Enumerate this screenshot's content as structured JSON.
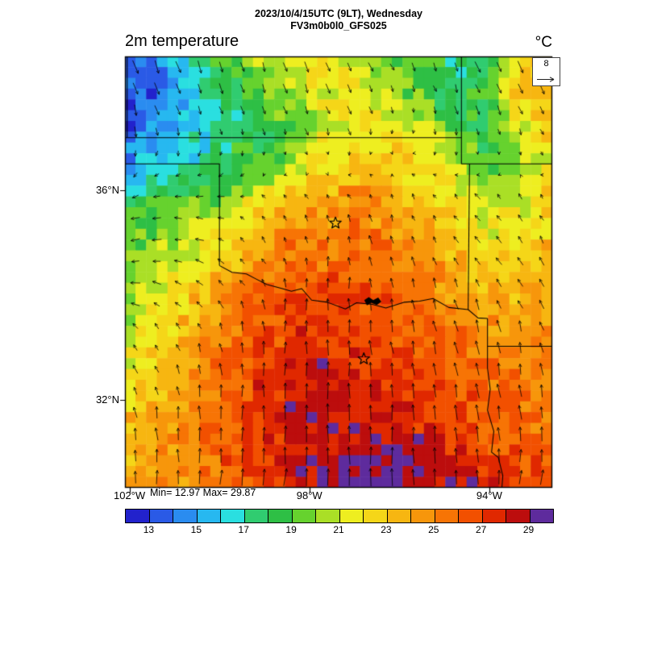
{
  "header": {
    "datetime_line": "2023/10/4/15UTC (9LT), Wednesday",
    "model_line": "FV3m0b0l0_GFS025",
    "left_title": "2m temperature",
    "units_label": "°C",
    "ref_vector_label": "8"
  },
  "stats": {
    "minmax_label": "Min= 12.97 Max= 29.87"
  },
  "axes": {
    "lat_ticks": [
      {
        "label": "36°N",
        "lat": 36
      },
      {
        "label": "32°N",
        "lat": 32
      }
    ],
    "lon_ticks": [
      {
        "label": "102°W",
        "lon": 102
      },
      {
        "label": "98°W",
        "lon": 98
      },
      {
        "label": "94°W",
        "lon": 94
      }
    ]
  },
  "colorbar": {
    "min": 12,
    "max": 30,
    "tick_labels": [
      "13",
      "15",
      "17",
      "19",
      "21",
      "23",
      "25",
      "27",
      "29"
    ],
    "colors": [
      "#2222cc",
      "#2a5ae6",
      "#2a8cf0",
      "#27b8f0",
      "#2adfe0",
      "#30cc70",
      "#2ebf45",
      "#66d22e",
      "#aadf26",
      "#eeee20",
      "#f5d618",
      "#f7b611",
      "#f7960b",
      "#f77405",
      "#f25000",
      "#e02800",
      "#bc0d0d",
      "#5e2b9d"
    ]
  },
  "chart_data": {
    "type": "heatmap",
    "title": "2m temperature",
    "units": "°C",
    "min_value": 12.97,
    "max_value": 29.87,
    "extent": {
      "lon_west": 102.1,
      "lon_east": 92.6,
      "lat_north": 38.55,
      "lat_south": 30.32
    },
    "levels_start": 12,
    "levels_step": 1,
    "temps": [
      [
        14,
        15,
        17,
        19,
        21,
        21,
        22,
        21,
        20,
        19,
        18,
        18,
        22,
        24
      ],
      [
        13,
        14,
        16,
        17,
        19,
        21,
        22,
        22,
        21,
        19,
        17,
        19,
        23,
        24
      ],
      [
        13,
        15,
        16,
        17,
        18,
        19,
        21,
        22,
        22,
        21,
        19,
        18,
        21,
        23
      ],
      [
        15,
        16,
        17,
        18,
        19,
        20,
        22,
        23,
        23,
        22,
        21,
        19,
        20,
        22
      ],
      [
        18,
        18,
        19,
        20,
        22,
        23,
        24,
        25,
        24,
        23,
        22,
        21,
        21,
        23
      ],
      [
        19,
        20,
        21,
        22,
        23,
        25,
        25,
        26,
        25,
        24,
        23,
        22,
        22,
        23
      ],
      [
        20,
        21,
        22,
        23,
        25,
        26,
        26,
        26,
        26,
        25,
        24,
        23,
        23,
        24
      ],
      [
        20,
        22,
        23,
        25,
        26,
        27,
        27,
        27,
        26,
        26,
        25,
        24,
        24,
        24
      ],
      [
        21,
        22,
        24,
        25,
        27,
        27,
        28,
        27,
        27,
        26,
        26,
        25,
        24,
        25
      ],
      [
        22,
        23,
        24,
        26,
        27,
        28,
        28,
        28,
        27,
        27,
        26,
        26,
        25,
        25
      ],
      [
        23,
        24,
        25,
        26,
        27,
        28,
        29,
        28,
        28,
        27,
        27,
        26,
        26,
        26
      ],
      [
        23,
        24,
        25,
        26,
        27,
        28,
        28,
        29,
        29,
        29,
        28,
        27,
        26,
        26
      ],
      [
        24,
        25,
        25,
        26,
        27,
        28,
        29,
        30,
        30,
        29,
        29,
        28,
        27,
        27
      ]
    ],
    "wind": {
      "reference": 8,
      "grid": [
        [
          [
            2,
            -5
          ],
          [
            2,
            -5
          ],
          [
            1,
            -4
          ],
          [
            2,
            -4
          ],
          [
            1,
            -3
          ],
          [
            2,
            -4
          ],
          [
            2,
            -5
          ]
        ],
        [
          [
            1,
            -4
          ],
          [
            1,
            -3
          ],
          [
            1,
            -3
          ],
          [
            1,
            -3
          ],
          [
            0,
            -2
          ],
          [
            1,
            -3
          ],
          [
            1,
            -3
          ]
        ],
        [
          [
            -3,
            -1
          ],
          [
            -3,
            0
          ],
          [
            -2,
            1
          ],
          [
            -1,
            2
          ],
          [
            -1,
            2
          ],
          [
            -2,
            2
          ],
          [
            -1,
            2
          ]
        ],
        [
          [
            -4,
            0
          ],
          [
            -3,
            1
          ],
          [
            -1,
            3
          ],
          [
            0,
            4
          ],
          [
            -1,
            4
          ],
          [
            -2,
            3
          ],
          [
            -2,
            3
          ]
        ],
        [
          [
            -2,
            2
          ],
          [
            -1,
            3
          ],
          [
            0,
            5
          ],
          [
            0,
            6
          ],
          [
            -1,
            5
          ],
          [
            -1,
            5
          ],
          [
            -1,
            4
          ]
        ],
        [
          [
            -1,
            4
          ],
          [
            0,
            5
          ],
          [
            0,
            6
          ],
          [
            0,
            7
          ],
          [
            0,
            6
          ],
          [
            -1,
            6
          ],
          [
            0,
            5
          ]
        ],
        [
          [
            0,
            5
          ],
          [
            0,
            6
          ],
          [
            1,
            7
          ],
          [
            0,
            7
          ],
          [
            0,
            7
          ],
          [
            0,
            6
          ],
          [
            1,
            6
          ]
        ]
      ]
    }
  },
  "map": {
    "boundaries": [
      {
        "name": "co-ks",
        "pts": [
          [
            102.05,
            38.55
          ],
          [
            102.05,
            37.0
          ]
        ]
      },
      {
        "name": "ks-ok",
        "pts": [
          [
            102.1,
            37.0
          ],
          [
            94.62,
            37.0
          ]
        ]
      },
      {
        "name": "ks-mo-ok",
        "pts": [
          [
            94.62,
            38.55
          ],
          [
            94.62,
            36.5
          ]
        ]
      },
      {
        "name": "mo-ar",
        "pts": [
          [
            94.62,
            36.5
          ],
          [
            92.6,
            36.5
          ]
        ]
      },
      {
        "name": "ok-ar",
        "pts": [
          [
            94.44,
            36.5
          ],
          [
            94.47,
            33.72
          ]
        ]
      },
      {
        "name": "ok-tx-panhandle",
        "pts": [
          [
            102.1,
            36.5
          ],
          [
            100.0,
            36.5
          ],
          [
            100.0,
            34.56
          ]
        ]
      },
      {
        "name": "red-river",
        "pts": [
          [
            100.0,
            34.56
          ],
          [
            99.72,
            34.43
          ],
          [
            99.4,
            34.4
          ],
          [
            99.2,
            34.31
          ],
          [
            98.95,
            34.2
          ],
          [
            98.6,
            34.12
          ],
          [
            98.4,
            34.07
          ],
          [
            98.17,
            34.12
          ],
          [
            97.95,
            33.9
          ],
          [
            97.6,
            33.86
          ],
          [
            97.2,
            33.73
          ],
          [
            96.95,
            33.85
          ],
          [
            96.6,
            33.82
          ],
          [
            96.3,
            33.75
          ],
          [
            95.9,
            33.86
          ],
          [
            95.55,
            33.88
          ],
          [
            95.25,
            33.93
          ],
          [
            94.9,
            33.76
          ],
          [
            94.47,
            33.72
          ],
          [
            94.25,
            33.56
          ],
          [
            94.04,
            33.55
          ]
        ]
      },
      {
        "name": "tx-ar-la",
        "pts": [
          [
            94.04,
            33.55
          ],
          [
            94.04,
            32.6
          ],
          [
            93.98,
            32.2
          ],
          [
            94.04,
            31.8
          ],
          [
            93.9,
            31.4
          ],
          [
            93.95,
            31.0
          ],
          [
            93.8,
            30.9
          ],
          [
            93.7,
            30.55
          ],
          [
            93.72,
            30.32
          ]
        ]
      },
      {
        "name": "ar-la",
        "pts": [
          [
            94.04,
            33.02
          ],
          [
            92.6,
            33.02
          ]
        ]
      }
    ],
    "lake": [
      [
        96.78,
        33.9
      ],
      [
        96.68,
        33.96
      ],
      [
        96.58,
        33.9
      ],
      [
        96.47,
        33.95
      ],
      [
        96.4,
        33.87
      ],
      [
        96.5,
        33.81
      ],
      [
        96.63,
        33.85
      ],
      [
        96.72,
        33.8
      ]
    ],
    "markers": [
      {
        "lon": 97.42,
        "lat": 35.37
      },
      {
        "lon": 96.79,
        "lat": 32.78
      }
    ]
  }
}
